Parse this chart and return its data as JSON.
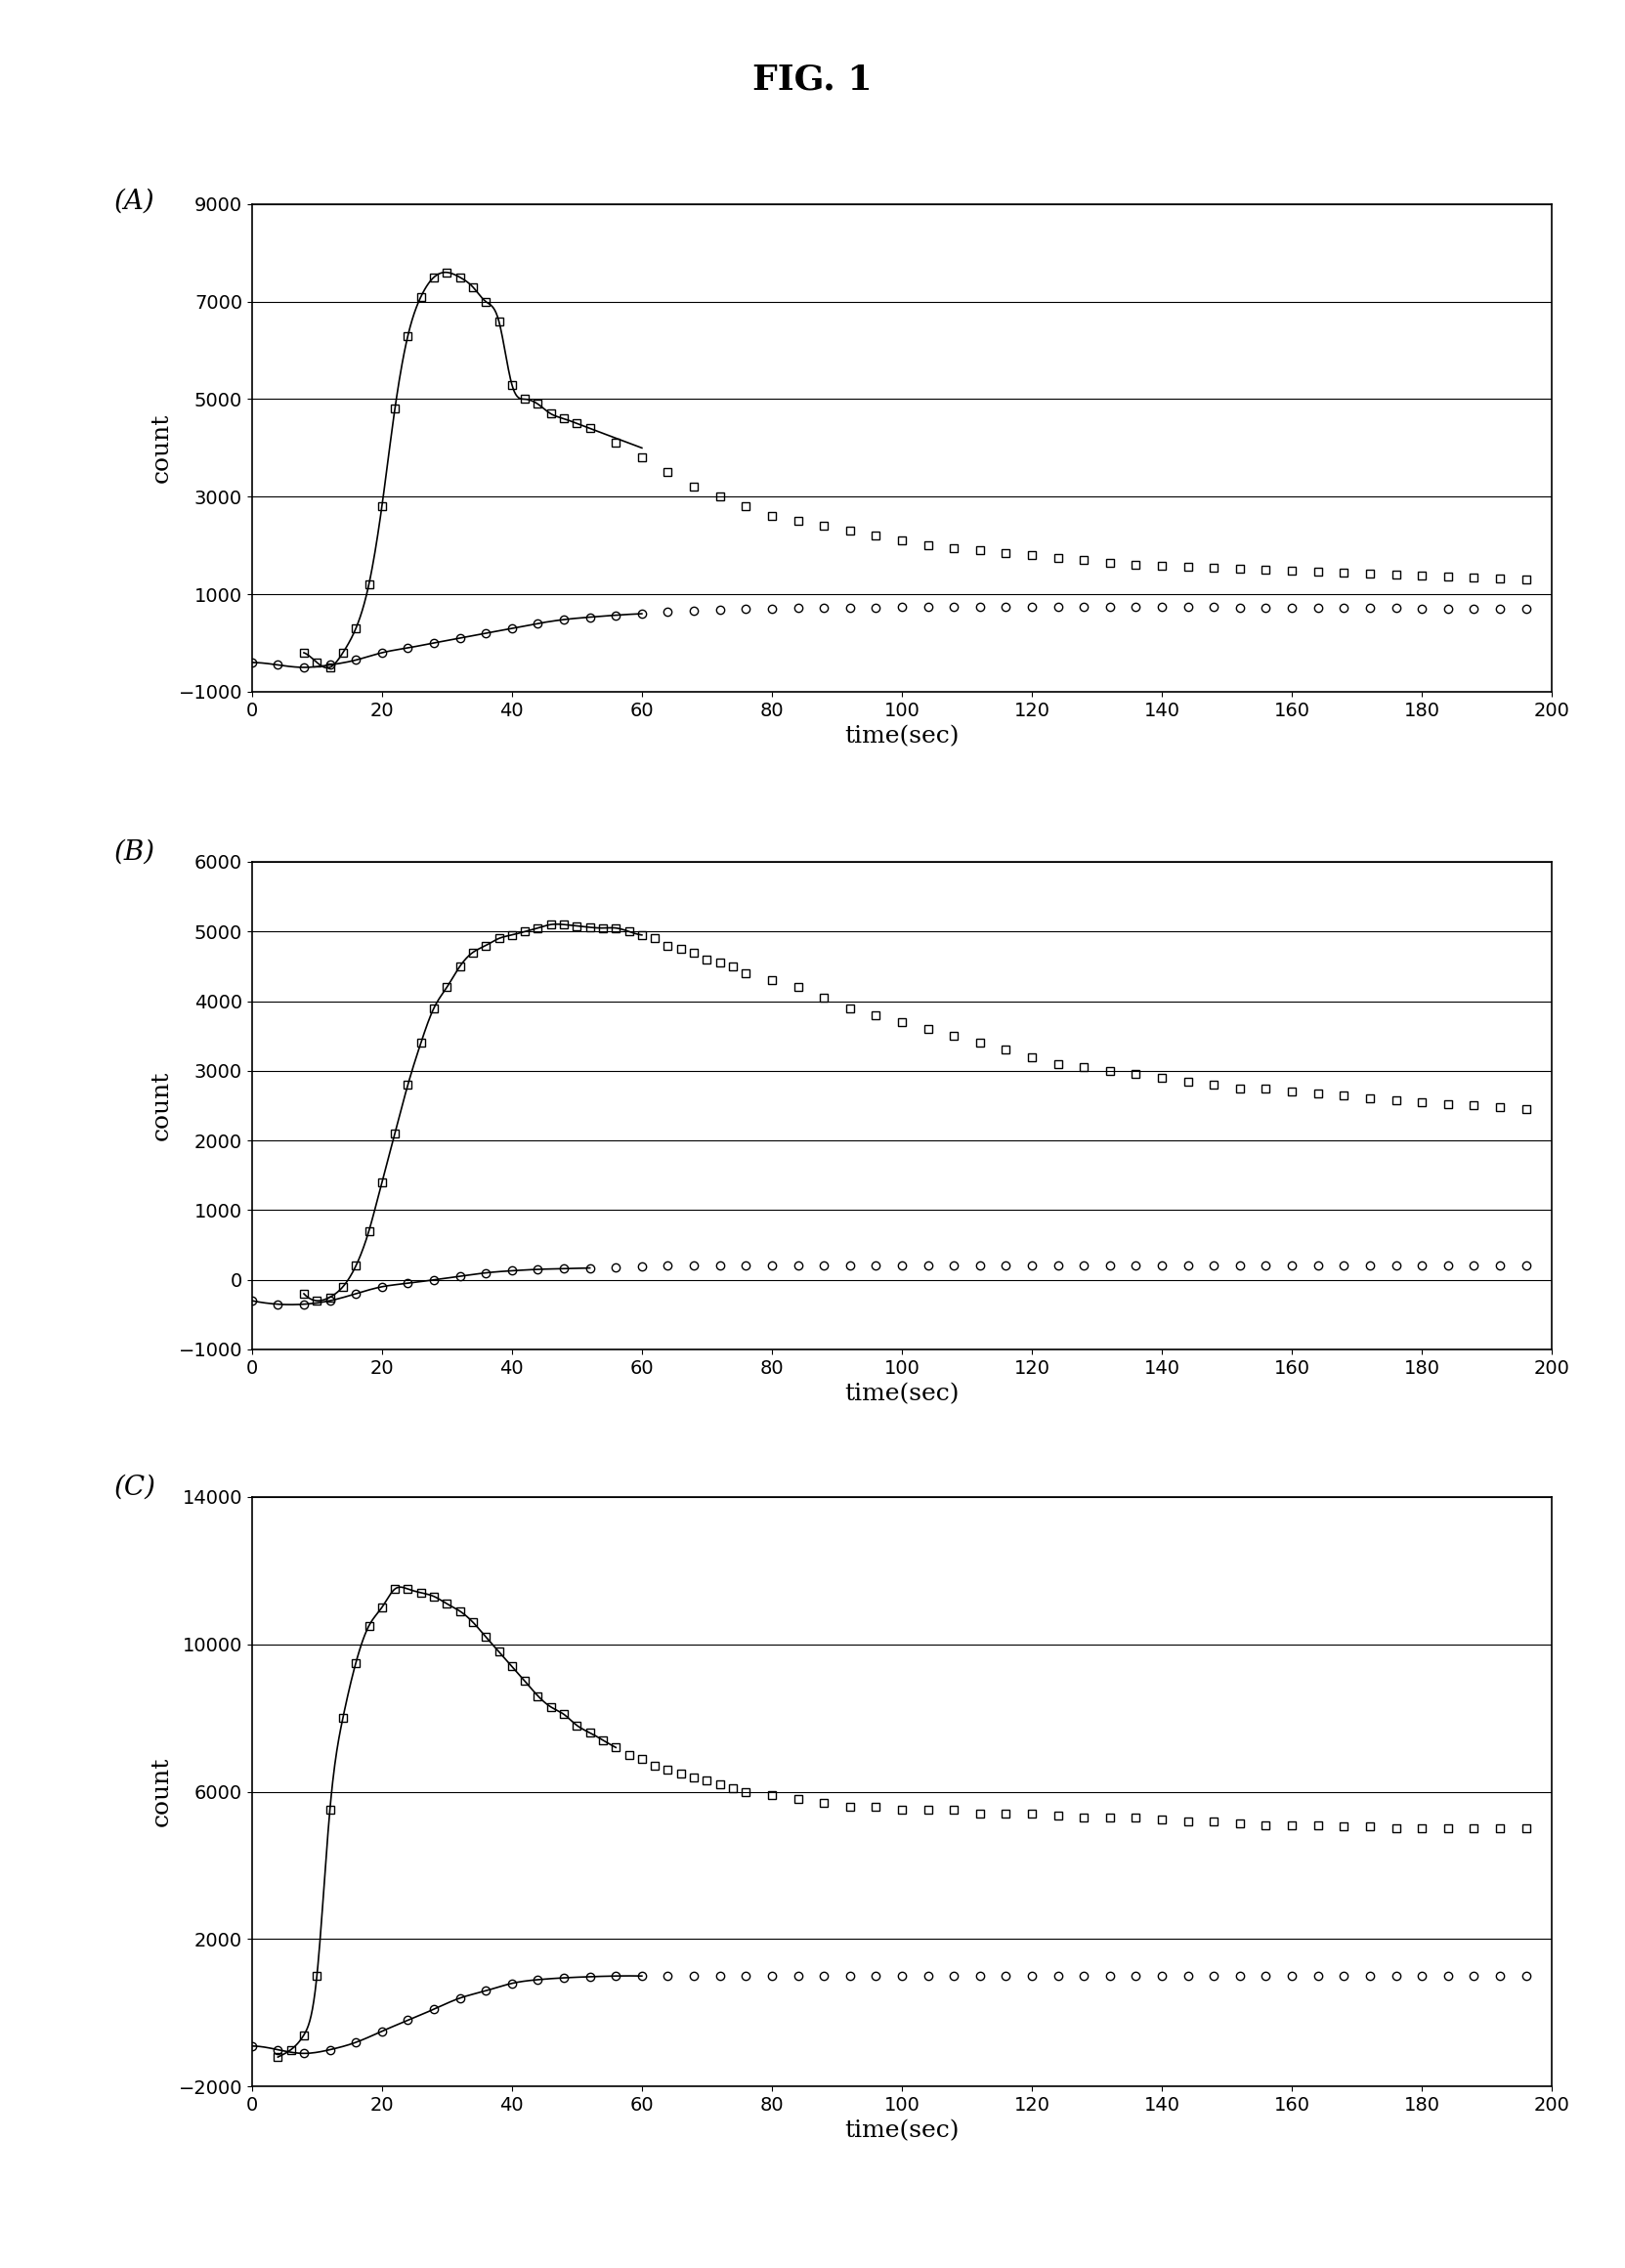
{
  "title": "FIG. 1",
  "panels": [
    "(A)",
    "(B)",
    "(C)"
  ],
  "xlabel": "time(sec)",
  "ylabel": "count",
  "panel_A": {
    "ylim": [
      -1000,
      9000
    ],
    "yticks": [
      -1000,
      1000,
      3000,
      5000,
      7000,
      9000
    ],
    "sq_times": [
      8,
      10,
      12,
      14,
      16,
      18,
      20,
      22,
      24,
      26,
      28,
      30,
      32,
      34,
      36,
      38,
      40,
      42,
      44,
      46,
      48,
      50,
      52,
      56,
      60,
      64,
      68,
      72,
      76,
      80,
      84,
      88,
      92,
      96,
      100,
      104,
      108,
      112,
      116,
      120,
      124,
      128,
      132,
      136,
      140,
      144,
      148,
      152,
      156,
      160,
      164,
      168,
      172,
      176,
      180,
      184,
      188,
      192,
      196
    ],
    "sq_vals": [
      -200,
      -400,
      -500,
      -200,
      300,
      1200,
      2800,
      4800,
      6300,
      7100,
      7500,
      7600,
      7500,
      7300,
      7000,
      6600,
      5300,
      5000,
      4900,
      4700,
      4600,
      4500,
      4400,
      4100,
      3800,
      3500,
      3200,
      3000,
      2800,
      2600,
      2500,
      2400,
      2300,
      2200,
      2100,
      2000,
      1950,
      1900,
      1850,
      1800,
      1750,
      1700,
      1650,
      1600,
      1580,
      1560,
      1540,
      1520,
      1500,
      1480,
      1460,
      1440,
      1420,
      1400,
      1380,
      1360,
      1340,
      1320,
      1300
    ],
    "ci_times": [
      0,
      4,
      8,
      12,
      16,
      20,
      24,
      28,
      32,
      36,
      40,
      44,
      48,
      52,
      56,
      60,
      64,
      68,
      72,
      76,
      80,
      84,
      88,
      92,
      96,
      100,
      104,
      108,
      112,
      116,
      120,
      124,
      128,
      132,
      136,
      140,
      144,
      148,
      152,
      156,
      160,
      164,
      168,
      172,
      176,
      180,
      184,
      188,
      192,
      196
    ],
    "ci_vals": [
      -400,
      -450,
      -500,
      -450,
      -350,
      -200,
      -100,
      0,
      100,
      200,
      300,
      400,
      480,
      530,
      570,
      600,
      640,
      660,
      680,
      700,
      710,
      720,
      720,
      730,
      730,
      740,
      740,
      740,
      740,
      740,
      750,
      750,
      750,
      740,
      740,
      740,
      740,
      740,
      730,
      730,
      730,
      720,
      720,
      720,
      720,
      710,
      710,
      710,
      700,
      700
    ],
    "sq_fit_t": [
      8,
      10,
      12,
      14,
      16,
      18,
      20,
      22,
      24,
      26,
      28,
      30,
      32,
      34,
      36,
      38,
      40,
      42,
      44,
      46,
      48,
      50,
      52,
      54,
      56,
      58,
      60
    ],
    "sq_fit_v": [
      -200,
      -400,
      -500,
      -200,
      300,
      1200,
      2800,
      4800,
      6300,
      7100,
      7500,
      7600,
      7500,
      7300,
      7000,
      6600,
      5300,
      5000,
      4900,
      4700,
      4600,
      4500,
      4400,
      4300,
      4200,
      4100,
      4000
    ],
    "ci_fit_t": [
      0,
      4,
      8,
      12,
      16,
      20,
      24,
      28,
      32,
      36,
      40,
      44,
      48,
      52,
      56,
      60
    ],
    "ci_fit_v": [
      -400,
      -450,
      -500,
      -450,
      -350,
      -200,
      -100,
      0,
      100,
      200,
      300,
      400,
      480,
      530,
      570,
      600
    ]
  },
  "panel_B": {
    "ylim": [
      -1000,
      6000
    ],
    "yticks": [
      -1000,
      0,
      1000,
      2000,
      3000,
      4000,
      5000,
      6000
    ],
    "sq_times": [
      8,
      10,
      12,
      14,
      16,
      18,
      20,
      22,
      24,
      26,
      28,
      30,
      32,
      34,
      36,
      38,
      40,
      42,
      44,
      46,
      48,
      50,
      52,
      54,
      56,
      58,
      60,
      62,
      64,
      66,
      68,
      70,
      72,
      74,
      76,
      80,
      84,
      88,
      92,
      96,
      100,
      104,
      108,
      112,
      116,
      120,
      124,
      128,
      132,
      136,
      140,
      144,
      148,
      152,
      156,
      160,
      164,
      168,
      172,
      176,
      180,
      184,
      188,
      192,
      196
    ],
    "sq_vals": [
      -200,
      -300,
      -250,
      -100,
      200,
      700,
      1400,
      2100,
      2800,
      3400,
      3900,
      4200,
      4500,
      4700,
      4800,
      4900,
      4950,
      5000,
      5050,
      5100,
      5100,
      5080,
      5060,
      5050,
      5050,
      5000,
      4950,
      4900,
      4800,
      4750,
      4700,
      4600,
      4550,
      4500,
      4400,
      4300,
      4200,
      4050,
      3900,
      3800,
      3700,
      3600,
      3500,
      3400,
      3300,
      3200,
      3100,
      3050,
      3000,
      2950,
      2900,
      2850,
      2800,
      2750,
      2750,
      2700,
      2680,
      2650,
      2600,
      2580,
      2550,
      2520,
      2500,
      2480,
      2450
    ],
    "ci_times": [
      0,
      4,
      8,
      12,
      16,
      20,
      24,
      28,
      32,
      36,
      40,
      44,
      48,
      52,
      56,
      60,
      64,
      68,
      72,
      76,
      80,
      84,
      88,
      92,
      96,
      100,
      104,
      108,
      112,
      116,
      120,
      124,
      128,
      132,
      136,
      140,
      144,
      148,
      152,
      156,
      160,
      164,
      168,
      172,
      176,
      180,
      184,
      188,
      192,
      196
    ],
    "ci_vals": [
      -300,
      -350,
      -350,
      -300,
      -200,
      -100,
      -50,
      0,
      50,
      100,
      130,
      150,
      160,
      170,
      180,
      190,
      200,
      200,
      200,
      200,
      200,
      200,
      200,
      200,
      200,
      200,
      200,
      200,
      200,
      200,
      200,
      200,
      200,
      200,
      200,
      200,
      200,
      200,
      200,
      200,
      200,
      200,
      200,
      200,
      200,
      200,
      200,
      200,
      200,
      200
    ],
    "sq_fit_t": [
      8,
      10,
      12,
      14,
      16,
      18,
      20,
      22,
      24,
      26,
      28,
      30,
      32,
      34,
      36,
      38,
      40,
      42,
      44,
      46,
      48,
      50,
      52,
      54,
      56,
      58,
      60
    ],
    "sq_fit_v": [
      -200,
      -300,
      -250,
      -100,
      200,
      700,
      1400,
      2100,
      2800,
      3400,
      3900,
      4200,
      4500,
      4700,
      4800,
      4900,
      4950,
      5000,
      5050,
      5100,
      5100,
      5080,
      5060,
      5050,
      5050,
      5000,
      4950
    ],
    "ci_fit_t": [
      0,
      4,
      8,
      12,
      16,
      20,
      24,
      28,
      32,
      36,
      40,
      44,
      48,
      52
    ],
    "ci_fit_v": [
      -300,
      -350,
      -350,
      -300,
      -200,
      -100,
      -50,
      0,
      50,
      100,
      130,
      150,
      160,
      170
    ]
  },
  "panel_C": {
    "ylim": [
      -2000,
      14000
    ],
    "yticks": [
      -2000,
      2000,
      6000,
      10000,
      14000
    ],
    "sq_times": [
      4,
      6,
      8,
      10,
      12,
      14,
      16,
      18,
      20,
      22,
      24,
      26,
      28,
      30,
      32,
      34,
      36,
      38,
      40,
      42,
      44,
      46,
      48,
      50,
      52,
      54,
      56,
      58,
      60,
      62,
      64,
      66,
      68,
      70,
      72,
      74,
      76,
      80,
      84,
      88,
      92,
      96,
      100,
      104,
      108,
      112,
      116,
      120,
      124,
      128,
      132,
      136,
      140,
      144,
      148,
      152,
      156,
      160,
      164,
      168,
      172,
      176,
      180,
      184,
      188,
      192,
      196
    ],
    "sq_vals": [
      -1200,
      -1000,
      -600,
      1000,
      5500,
      8000,
      9500,
      10500,
      11000,
      11500,
      11500,
      11400,
      11300,
      11100,
      10900,
      10600,
      10200,
      9800,
      9400,
      9000,
      8600,
      8300,
      8100,
      7800,
      7600,
      7400,
      7200,
      7000,
      6900,
      6700,
      6600,
      6500,
      6400,
      6300,
      6200,
      6100,
      6000,
      5900,
      5800,
      5700,
      5600,
      5600,
      5500,
      5500,
      5500,
      5400,
      5400,
      5400,
      5350,
      5300,
      5300,
      5300,
      5250,
      5200,
      5200,
      5150,
      5100,
      5100,
      5100,
      5050,
      5050,
      5000,
      5000,
      5000,
      5000,
      5000,
      5000
    ],
    "ci_times": [
      0,
      4,
      8,
      12,
      16,
      20,
      24,
      28,
      32,
      36,
      40,
      44,
      48,
      52,
      56,
      60,
      64,
      68,
      72,
      76,
      80,
      84,
      88,
      92,
      96,
      100,
      104,
      108,
      112,
      116,
      120,
      124,
      128,
      132,
      136,
      140,
      144,
      148,
      152,
      156,
      160,
      164,
      168,
      172,
      176,
      180,
      184,
      188,
      192,
      196
    ],
    "ci_vals": [
      -900,
      -1000,
      -1100,
      -1000,
      -800,
      -500,
      -200,
      100,
      400,
      600,
      800,
      900,
      950,
      980,
      1000,
      1000,
      1000,
      1000,
      1000,
      1000,
      1000,
      1000,
      1000,
      1000,
      1000,
      1000,
      1000,
      1000,
      1000,
      1000,
      1000,
      1000,
      1000,
      1000,
      1000,
      1000,
      1000,
      1000,
      1000,
      1000,
      1000,
      1000,
      1000,
      1000,
      1000,
      1000,
      1000,
      1000,
      1000,
      1000
    ],
    "sq_fit_t": [
      4,
      6,
      8,
      10,
      12,
      14,
      16,
      18,
      20,
      22,
      24,
      26,
      28,
      30,
      32,
      34,
      36,
      38,
      40,
      42,
      44,
      46,
      48,
      50,
      52,
      54,
      56
    ],
    "sq_fit_v": [
      -1200,
      -1000,
      -600,
      1000,
      5500,
      8000,
      9500,
      10500,
      11000,
      11500,
      11500,
      11400,
      11300,
      11100,
      10900,
      10600,
      10200,
      9800,
      9400,
      9000,
      8600,
      8300,
      8100,
      7800,
      7600,
      7400,
      7200
    ],
    "ci_fit_t": [
      0,
      4,
      8,
      12,
      16,
      20,
      24,
      28,
      32,
      36,
      40,
      44,
      48,
      52,
      56,
      60
    ],
    "ci_fit_v": [
      -900,
      -1000,
      -1100,
      -1000,
      -800,
      -500,
      -200,
      100,
      400,
      600,
      800,
      900,
      950,
      980,
      1000,
      1000
    ]
  },
  "bg_color": "#ffffff",
  "title_fontsize": 26,
  "label_fontsize": 18,
  "tick_fontsize": 14,
  "panel_label_fontsize": 20
}
